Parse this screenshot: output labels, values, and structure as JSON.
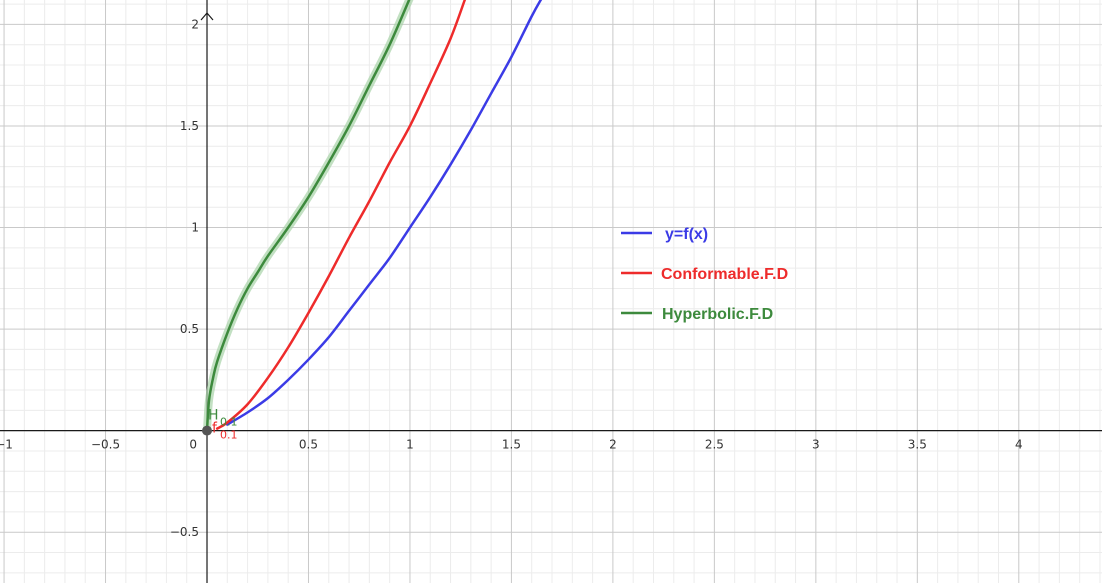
{
  "chart_data": {
    "type": "line",
    "title": "",
    "xlabel": "",
    "ylabel": "",
    "xlim": [
      -1.02,
      4.41
    ],
    "ylim": [
      -0.75,
      2.12
    ],
    "grid": true,
    "x_ticks": [
      {
        "value": -1,
        "label": "−1"
      },
      {
        "value": -0.5,
        "label": "−0.5"
      },
      {
        "value": 0.5,
        "label": "0.5"
      },
      {
        "value": 1,
        "label": "1"
      },
      {
        "value": 1.5,
        "label": "1.5"
      },
      {
        "value": 2,
        "label": "2"
      },
      {
        "value": 2.5,
        "label": "2.5"
      },
      {
        "value": 3,
        "label": "3"
      },
      {
        "value": 3.5,
        "label": "3.5"
      },
      {
        "value": 4,
        "label": "4"
      }
    ],
    "y_ticks": [
      {
        "value": -0.5,
        "label": "−0.5"
      },
      {
        "value": 0.5,
        "label": "0.5"
      },
      {
        "value": 1,
        "label": "1"
      },
      {
        "value": 1.5,
        "label": "1.5"
      },
      {
        "value": 2,
        "label": "2"
      }
    ],
    "origin_label": "0",
    "series": [
      {
        "name": "y=f(x)",
        "color": "#3b3be6",
        "x": [
          0.1,
          0.2,
          0.3,
          0.4,
          0.5,
          0.6,
          0.7,
          0.8,
          0.9,
          1.0,
          1.1,
          1.2,
          1.3,
          1.4,
          1.5,
          1.6,
          1.65
        ],
        "y": [
          0.03,
          0.09,
          0.16,
          0.25,
          0.35,
          0.46,
          0.59,
          0.72,
          0.85,
          1.0,
          1.15,
          1.31,
          1.48,
          1.66,
          1.84,
          2.04,
          2.13
        ]
      },
      {
        "name": "Conformable.F.D",
        "color": "#ee2b2b",
        "x": [
          0.05,
          0.1,
          0.2,
          0.3,
          0.4,
          0.5,
          0.6,
          0.7,
          0.8,
          0.9,
          1.0,
          1.1,
          1.2,
          1.27
        ],
        "y": [
          0.01,
          0.04,
          0.13,
          0.26,
          0.41,
          0.58,
          0.76,
          0.95,
          1.13,
          1.32,
          1.5,
          1.71,
          1.93,
          2.12
        ]
      },
      {
        "name": "Hyperbolic.F.D",
        "color": "#3d8a3d",
        "x": [
          0.0,
          0.01,
          0.03,
          0.05,
          0.1,
          0.15,
          0.2,
          0.25,
          0.3,
          0.4,
          0.5,
          0.6,
          0.7,
          0.8,
          0.9,
          1.0
        ],
        "y": [
          0.0,
          0.15,
          0.26,
          0.34,
          0.48,
          0.6,
          0.7,
          0.78,
          0.86,
          1.0,
          1.15,
          1.32,
          1.5,
          1.7,
          1.9,
          2.13
        ]
      }
    ],
    "point": {
      "x": 0,
      "y": 0
    },
    "annotations": [
      {
        "text": "H",
        "subscript": "0.1",
        "color": "#3d8a3d"
      },
      {
        "text": "f",
        "subscript": "0.1",
        "color": "#ee2b2b"
      }
    ]
  }
}
